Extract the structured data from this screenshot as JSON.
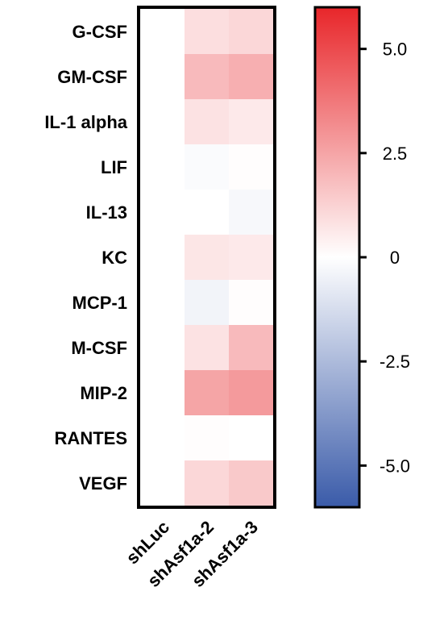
{
  "chart_data": {
    "type": "heatmap",
    "rows": [
      "G-CSF",
      "GM-CSF",
      "IL-1 alpha",
      "LIF",
      "IL-13",
      "KC",
      "MCP-1",
      "M-CSF",
      "MIP-2",
      "RANTES",
      "VEGF"
    ],
    "columns": [
      "shLuc",
      "shAsf1a-2",
      "shAsf1a-3"
    ],
    "values": [
      [
        0,
        0.9,
        1.1
      ],
      [
        0,
        1.9,
        2.2
      ],
      [
        0,
        0.8,
        0.6
      ],
      [
        0,
        -0.15,
        0.05
      ],
      [
        0,
        0,
        -0.25
      ],
      [
        0,
        0.7,
        0.6
      ],
      [
        0,
        -0.4,
        0.05
      ],
      [
        0,
        0.8,
        1.9
      ],
      [
        0,
        2.5,
        2.8
      ],
      [
        0,
        0.05,
        0
      ],
      [
        0,
        1.1,
        1.5
      ]
    ],
    "colorbar": {
      "min": -6,
      "max": 6,
      "ticks": [
        5.0,
        2.5,
        0,
        -2.5,
        -5.0
      ],
      "tick_labels": [
        "5.0",
        "2.5",
        "0",
        "-2.5",
        "-5.0"
      ],
      "colors": {
        "low": "#3a5ba9",
        "mid": "#ffffff",
        "high": "#e8262a"
      }
    }
  }
}
